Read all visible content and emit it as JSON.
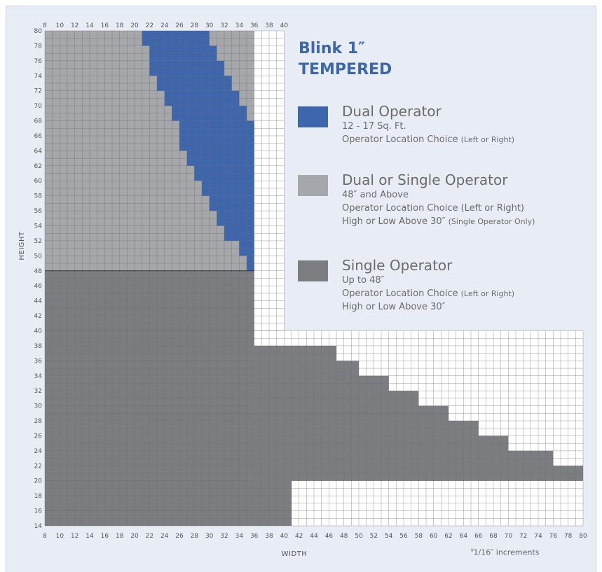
{
  "chart_data": {
    "type": "heatmap",
    "title": "Blink 1″",
    "subtitle": "TEMPERED",
    "xlabel": "WIDTH",
    "ylabel": "HEIGHT",
    "x_range": [
      8,
      80
    ],
    "y_range": [
      14,
      80
    ],
    "xticks": [
      8,
      10,
      12,
      14,
      16,
      18,
      20,
      22,
      24,
      26,
      28,
      30,
      32,
      34,
      36,
      38,
      40,
      42,
      44,
      46,
      48,
      50,
      52,
      54,
      56,
      58,
      60,
      62,
      64,
      66,
      68,
      70,
      72,
      74,
      76,
      78,
      80
    ],
    "top_xticks": [
      8,
      10,
      12,
      14,
      16,
      18,
      20,
      22,
      24,
      26,
      28,
      30,
      32,
      34,
      36,
      38,
      40
    ],
    "yticks": [
      14,
      16,
      18,
      20,
      22,
      24,
      26,
      28,
      30,
      32,
      34,
      36,
      38,
      40,
      42,
      44,
      46,
      48,
      50,
      52,
      54,
      56,
      58,
      60,
      62,
      64,
      66,
      68,
      70,
      72,
      74,
      76,
      78,
      80
    ],
    "grid": true,
    "colors": {
      "dual": "#3e66ad",
      "dual_or_single": "#a6a7aa",
      "single": "#7c7d80",
      "empty": "#ffffff",
      "grid": "#6e6e6e"
    },
    "series": [
      {
        "name": "Dual Operator",
        "description_lines": [
          "12 - 17 Sq. Ft.",
          "Operator Location Choice"
        ],
        "small_suffix": "(Left or Right)",
        "regions": [
          {
            "height_range": [
              78,
              80
            ],
            "width_range": [
              21,
              30
            ]
          },
          {
            "height_range": [
              76,
              78
            ],
            "width_range": [
              22,
              31
            ]
          },
          {
            "height_range": [
              74,
              76
            ],
            "width_range": [
              22,
              32
            ]
          },
          {
            "height_range": [
              72,
              74
            ],
            "width_range": [
              23,
              33
            ]
          },
          {
            "height_range": [
              70,
              72
            ],
            "width_range": [
              24,
              34
            ]
          },
          {
            "height_range": [
              68,
              70
            ],
            "width_range": [
              25,
              35
            ]
          },
          {
            "height_range": [
              66,
              68
            ],
            "width_range": [
              26,
              36
            ]
          },
          {
            "height_range": [
              64,
              66
            ],
            "width_range": [
              26,
              36
            ]
          },
          {
            "height_range": [
              62,
              64
            ],
            "width_range": [
              27,
              36
            ]
          },
          {
            "height_range": [
              60,
              62
            ],
            "width_range": [
              28,
              36
            ]
          },
          {
            "height_range": [
              58,
              60
            ],
            "width_range": [
              29,
              36
            ]
          },
          {
            "height_range": [
              56,
              58
            ],
            "width_range": [
              30,
              36
            ]
          },
          {
            "height_range": [
              54,
              56
            ],
            "width_range": [
              31,
              36
            ]
          },
          {
            "height_range": [
              52,
              54
            ],
            "width_range": [
              32,
              36
            ]
          },
          {
            "height_range": [
              50,
              52
            ],
            "width_range": [
              34,
              36
            ]
          },
          {
            "height_range": [
              48,
              50
            ],
            "width_range": [
              35,
              36
            ]
          }
        ]
      },
      {
        "name": "Dual or Single Operator",
        "description_lines": [
          "48″ and Above",
          "Operator Location Choice (Left or Right)",
          "High or Low Above 30″"
        ],
        "small_suffix": "(Single Operator Only)",
        "regions": [
          {
            "height_range": [
              48,
              80
            ],
            "width_range": [
              8,
              36
            ],
            "excluding": "Dual Operator"
          }
        ]
      },
      {
        "name": "Single Operator",
        "description_lines": [
          "Up to 48″",
          "Operator Location Choice",
          "High or Low Above 30″"
        ],
        "small_suffix": "(Left or Right)",
        "regions": [
          {
            "height_range": [
              14,
              48
            ],
            "width_range": [
              8,
              36
            ]
          },
          {
            "height_range": [
              36,
              38
            ],
            "width_range": [
              36,
              47
            ]
          },
          {
            "height_range": [
              34,
              36
            ],
            "width_range": [
              36,
              50
            ]
          },
          {
            "height_range": [
              32,
              34
            ],
            "width_range": [
              36,
              54
            ]
          },
          {
            "height_range": [
              30,
              32
            ],
            "width_range": [
              36,
              58
            ]
          },
          {
            "height_range": [
              28,
              30
            ],
            "width_range": [
              36,
              62
            ]
          },
          {
            "height_range": [
              26,
              28
            ],
            "width_range": [
              36,
              66
            ]
          },
          {
            "height_range": [
              24,
              26
            ],
            "width_range": [
              36,
              70
            ]
          },
          {
            "height_range": [
              22,
              24
            ],
            "width_range": [
              36,
              76
            ]
          },
          {
            "height_range": [
              20,
              22
            ],
            "width_range": [
              36,
              80
            ]
          },
          {
            "height_range": [
              14,
              20
            ],
            "width_range": [
              36,
              41
            ]
          }
        ]
      }
    ],
    "grid_extent": [
      {
        "height_range": [
          40,
          80
        ],
        "width_range": [
          8,
          40
        ]
      },
      {
        "height_range": [
          14,
          40
        ],
        "width_range": [
          8,
          80
        ]
      }
    ],
    "note": "1/16″ increments",
    "note_symbol": "‡"
  }
}
